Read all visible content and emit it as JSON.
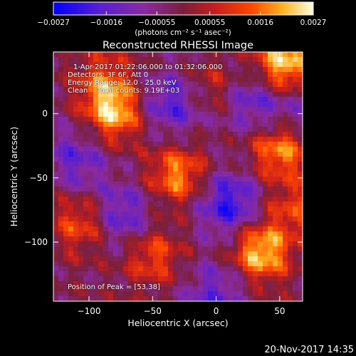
{
  "chart_data": {
    "type": "heatmap",
    "title": "Reconstructed RHESSI Image",
    "xlabel": "Heliocentric X (arcsec)",
    "ylabel": "Heliocentric Y (arcsec)",
    "xlim": [
      -128,
      68
    ],
    "ylim": [
      -146,
      48
    ],
    "x_ticks": [
      -100,
      -50,
      0,
      50
    ],
    "x_tick_labels": [
      "−100",
      "−50",
      "0",
      "50"
    ],
    "y_ticks": [
      0,
      -50,
      -100
    ],
    "y_tick_labels": [
      "0",
      "−50",
      "−100"
    ],
    "colorbar": {
      "range": [
        -0.0027,
        0.0027
      ],
      "ticks": [
        -0.0027,
        -0.0016,
        -0.00055,
        0.00055,
        0.0016,
        0.0027
      ],
      "tick_labels": [
        "−0.0027",
        "−0.0016",
        "−0.00055",
        "0.00055",
        "0.0016",
        "0.0027"
      ],
      "unit_label": "(photons cm⁻² s⁻¹ asec⁻²)"
    },
    "annotations": {
      "time_range": "1-Apr-2017 01:22:06.000 to 01:32:06.000",
      "detectors": "Detectors: 3F 6F, Att 0",
      "energy_range": "Energy Range: 12.0 - 25.0 keV",
      "clean_counts": "Clean    Total counts: 9.19E+03",
      "peak": "Position of Peak = [53,38]"
    },
    "sources": [
      {
        "x": 53,
        "y": 38,
        "amp": 1.0
      },
      {
        "x": -80,
        "y": 0,
        "amp": 0.85
      },
      {
        "x": -88,
        "y": 25,
        "amp": 0.55
      },
      {
        "x": 35,
        "y": -108,
        "amp": 0.95
      },
      {
        "x": 50,
        "y": -28,
        "amp": 0.8
      },
      {
        "x": -30,
        "y": -48,
        "amp": 0.75
      },
      {
        "x": -105,
        "y": -85,
        "amp": 0.6
      },
      {
        "x": -50,
        "y": -110,
        "amp": 0.55
      },
      {
        "x": 0,
        "y": 20,
        "amp": 0.45
      },
      {
        "x": 60,
        "y": -75,
        "amp": 0.45
      }
    ],
    "sinks": [
      {
        "x": -35,
        "y": 8,
        "amp": 0.6
      },
      {
        "x": 25,
        "y": 12,
        "amp": 0.55
      },
      {
        "x": -110,
        "y": -35,
        "amp": 0.5
      },
      {
        "x": 10,
        "y": -70,
        "amp": 0.75
      },
      {
        "x": -75,
        "y": -80,
        "amp": 0.6
      },
      {
        "x": 0,
        "y": -140,
        "amp": 0.5
      },
      {
        "x": 60,
        "y": 0,
        "amp": 0.35
      }
    ]
  },
  "footer": {
    "timestamp": "20-Nov-2017 14:35"
  }
}
